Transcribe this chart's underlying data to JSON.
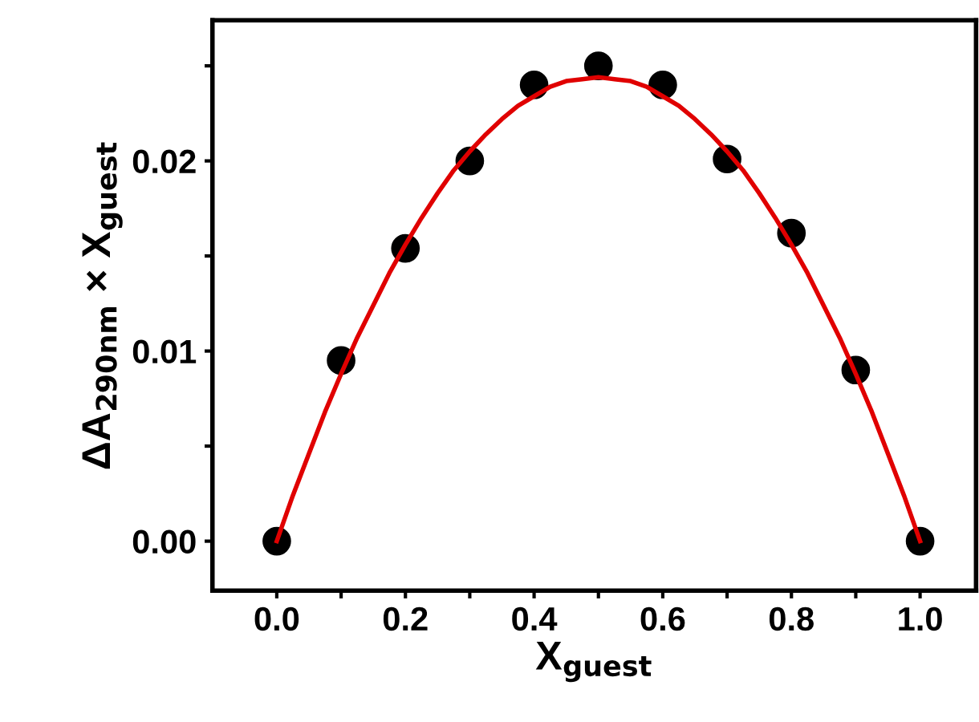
{
  "chart_data": {
    "type": "scatter",
    "xlabel": "X$_{guest}$",
    "ylabel": "ΔA$_{290nm}$ × X$_{guest}$",
    "xlim": [
      -0.1,
      1.087
    ],
    "ylim": [
      -0.0026,
      0.0274
    ],
    "xticks": [
      {
        "value": 0.0,
        "label": "0.0"
      },
      {
        "value": 0.1,
        "label": null
      },
      {
        "value": 0.2,
        "label": "0.2"
      },
      {
        "value": 0.3,
        "label": null
      },
      {
        "value": 0.4,
        "label": "0.4"
      },
      {
        "value": 0.5,
        "label": null
      },
      {
        "value": 0.6,
        "label": "0.6"
      },
      {
        "value": 0.7,
        "label": null
      },
      {
        "value": 0.8,
        "label": "0.8"
      },
      {
        "value": 0.9,
        "label": null
      },
      {
        "value": 1.0,
        "label": "1.0"
      }
    ],
    "yticks": [
      {
        "value": 0.0,
        "label": "0.00"
      },
      {
        "value": 0.005,
        "label": null
      },
      {
        "value": 0.01,
        "label": "0.01"
      },
      {
        "value": 0.015,
        "label": null
      },
      {
        "value": 0.02,
        "label": "0.02"
      },
      {
        "value": 0.025,
        "label": null
      }
    ],
    "grid": false,
    "legend": false,
    "series": [
      {
        "color": "#000000",
        "marker": "circle",
        "x": [
          0.0,
          0.1,
          0.2,
          0.3,
          0.4,
          0.5,
          0.6,
          0.7,
          0.8,
          0.9,
          1.0
        ],
        "values": [
          0.0,
          0.0095,
          0.0154,
          0.02,
          0.024,
          0.025,
          0.024,
          0.0201,
          0.0162,
          0.009,
          0.0
        ]
      },
      {
        "type": "line",
        "color": "#e00000",
        "line_style": "solid",
        "x": [
          0.0,
          0.025,
          0.05,
          0.075,
          0.1,
          0.125,
          0.15,
          0.175,
          0.2,
          0.225,
          0.25,
          0.275,
          0.3,
          0.325,
          0.35,
          0.375,
          0.4,
          0.425,
          0.45,
          0.475,
          0.5,
          0.525,
          0.55,
          0.575,
          0.6,
          0.625,
          0.65,
          0.675,
          0.7,
          0.725,
          0.75,
          0.775,
          0.8,
          0.825,
          0.85,
          0.875,
          0.9,
          0.925,
          0.95,
          0.975,
          1.0
        ],
        "values": [
          0.0,
          0.0024,
          0.0046,
          0.0068,
          0.0088,
          0.0107,
          0.0124,
          0.0141,
          0.0156,
          0.017,
          0.0183,
          0.0195,
          0.0205,
          0.0214,
          0.0222,
          0.0229,
          0.0234,
          0.0239,
          0.0242,
          0.0243,
          0.0244,
          0.0243,
          0.0242,
          0.0239,
          0.0234,
          0.0229,
          0.0222,
          0.0214,
          0.0205,
          0.0195,
          0.0183,
          0.017,
          0.0156,
          0.0141,
          0.0124,
          0.0107,
          0.0088,
          0.0068,
          0.0046,
          0.0024,
          0.0
        ]
      }
    ]
  }
}
